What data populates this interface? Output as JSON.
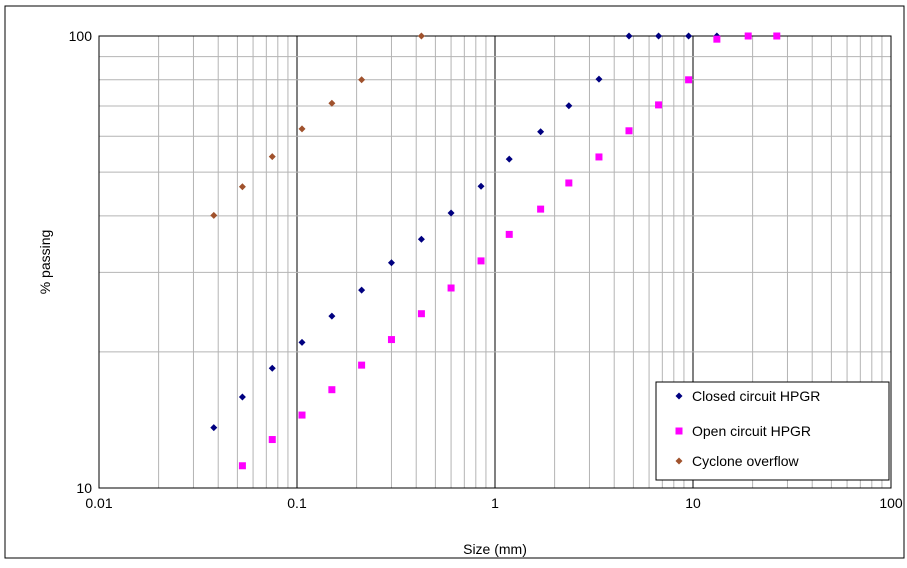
{
  "chart_data": {
    "type": "scatter",
    "title": "",
    "xlabel": "Size (mm)",
    "ylabel": "% passing",
    "x_scale": "log",
    "y_scale": "log",
    "xlim": [
      0.01,
      100
    ],
    "ylim": [
      10,
      100
    ],
    "x_ticks": [
      "0.01",
      "0.1",
      "1",
      "10",
      "100"
    ],
    "y_ticks": [
      "10",
      "100"
    ],
    "grid": true,
    "legend_position": "bottom-right",
    "series": [
      {
        "name": "Closed circuit HPGR",
        "color": "#000080",
        "marker": "diamond",
        "points": [
          [
            0.038,
            13.6
          ],
          [
            0.053,
            15.9
          ],
          [
            0.075,
            18.4
          ],
          [
            0.106,
            21.0
          ],
          [
            0.15,
            24.0
          ],
          [
            0.212,
            27.4
          ],
          [
            0.3,
            31.5
          ],
          [
            0.425,
            35.5
          ],
          [
            0.6,
            40.6
          ],
          [
            0.85,
            46.5
          ],
          [
            1.18,
            53.4
          ],
          [
            1.7,
            61.4
          ],
          [
            2.36,
            70.1
          ],
          [
            3.35,
            80.3
          ],
          [
            4.75,
            100
          ],
          [
            6.7,
            100
          ],
          [
            9.5,
            100
          ],
          [
            13.2,
            100
          ]
        ]
      },
      {
        "name": "Open circuit HPGR",
        "color": "#ff00ff",
        "marker": "square",
        "points": [
          [
            0.053,
            11.2
          ],
          [
            0.075,
            12.8
          ],
          [
            0.106,
            14.5
          ],
          [
            0.15,
            16.5
          ],
          [
            0.212,
            18.7
          ],
          [
            0.3,
            21.3
          ],
          [
            0.425,
            24.3
          ],
          [
            0.6,
            27.7
          ],
          [
            0.85,
            31.8
          ],
          [
            1.18,
            36.4
          ],
          [
            1.7,
            41.4
          ],
          [
            2.36,
            47.3
          ],
          [
            3.35,
            54.0
          ],
          [
            4.75,
            61.7
          ],
          [
            6.7,
            70.4
          ],
          [
            9.5,
            80.0
          ],
          [
            13.2,
            98.4
          ],
          [
            19.0,
            100
          ],
          [
            26.5,
            100
          ]
        ]
      },
      {
        "name": "Cyclone overflow",
        "color": "#a0522d",
        "marker": "diamond",
        "points": [
          [
            0.038,
            40.1
          ],
          [
            0.053,
            46.4
          ],
          [
            0.075,
            54.1
          ],
          [
            0.106,
            62.3
          ],
          [
            0.15,
            71.0
          ],
          [
            0.212,
            80.0
          ],
          [
            0.425,
            100
          ]
        ]
      }
    ]
  }
}
